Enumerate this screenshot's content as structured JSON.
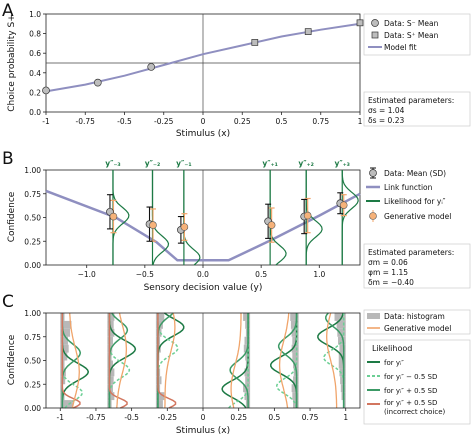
{
  "chart_data": [
    {
      "panel": "A",
      "type": "scatter",
      "xlabel": "Stimulus (x)",
      "ylabel": "Choice probability S+",
      "xlim": [
        -1,
        1
      ],
      "ylim": [
        0,
        1
      ],
      "xticks": [
        "-1",
        "-0.75",
        "-0.5",
        "-0.25",
        "0",
        "0.25",
        "0.5",
        "0.75",
        "1"
      ],
      "yticks": [
        "0.0",
        "0.2",
        "0.4",
        "0.6",
        "0.8",
        "1.0"
      ],
      "grid": false,
      "legend": [
        {
          "label": "Data: S⁻ Mean",
          "marker": "circle"
        },
        {
          "label": "Data: S⁺ Mean",
          "marker": "square"
        },
        {
          "label": "Model fit",
          "marker": "line"
        }
      ],
      "legend_position": "top-right",
      "series": [
        {
          "name": "Data: S⁻ Mean",
          "x": [
            -1,
            -0.67,
            -0.33
          ],
          "y": [
            0.22,
            0.3,
            0.46
          ]
        },
        {
          "name": "Data: S⁺ Mean",
          "x": [
            0.33,
            0.67,
            1.0
          ],
          "y": [
            0.71,
            0.82,
            0.91
          ]
        },
        {
          "name": "Model fit",
          "x": [
            -1,
            -0.75,
            -0.5,
            -0.25,
            0,
            0.25,
            0.5,
            0.75,
            1
          ],
          "y": [
            0.21,
            0.28,
            0.37,
            0.48,
            0.59,
            0.68,
            0.77,
            0.84,
            0.9
          ]
        }
      ],
      "annotation": {
        "title": "Estimated parameters:",
        "lines": [
          "σs = 1.04",
          "δs = 0.23"
        ]
      }
    },
    {
      "panel": "B",
      "type": "scatter",
      "xlabel": "Sensory decision value (y)",
      "ylabel": "Confidence",
      "xlim": [
        -1.35,
        1.35
      ],
      "ylim": [
        0,
        1
      ],
      "xticks": [
        "−1.0",
        "−0.5",
        "0.0",
        "0.5",
        "1.0"
      ],
      "yticks": [
        "0.00",
        "0.25",
        "0.50",
        "0.75",
        "1.00"
      ],
      "top_labels": [
        "y″₋₃",
        "y″₋₂",
        "y″₋₁",
        "y″₊₁",
        "y″₊₂",
        "y″₊₃"
      ],
      "legend": [
        {
          "label": "Data: Mean (SD)",
          "marker": "circle-errorbar"
        },
        {
          "label": "Link function",
          "marker": "line"
        },
        {
          "label": "Likelihood for yᵢ″",
          "marker": "line"
        },
        {
          "label": "Generative model",
          "marker": "circle"
        }
      ],
      "legend_position": "right",
      "series": [
        {
          "name": "Data: Mean (SD)",
          "x": [
            -0.8,
            -0.46,
            -0.19,
            0.56,
            0.87,
            1.18
          ],
          "y": [
            0.56,
            0.43,
            0.37,
            0.46,
            0.51,
            0.65
          ],
          "sd": [
            0.18,
            0.18,
            0.14,
            0.18,
            0.18,
            0.11
          ]
        },
        {
          "name": "Generative model",
          "x": [
            -0.77,
            -0.43,
            -0.16,
            0.59,
            0.9,
            1.21
          ],
          "y": [
            0.51,
            0.42,
            0.4,
            0.42,
            0.52,
            0.63
          ],
          "sd": [
            0.17,
            0.17,
            0.14,
            0.18,
            0.18,
            0.11
          ]
        },
        {
          "name": "Link function",
          "x": [
            -1.35,
            -0.75,
            -0.4,
            -0.22,
            0.22,
            0.6,
            1.0,
            1.35
          ],
          "y": [
            0.78,
            0.5,
            0.24,
            0.05,
            0.05,
            0.27,
            0.52,
            0.75
          ]
        }
      ],
      "annotation": {
        "title": "Estimated parameters:",
        "lines": [
          "σm = 0.06",
          "φm = 1.15",
          "δm = −0.40"
        ]
      }
    },
    {
      "panel": "C",
      "type": "area",
      "xlabel": "Stimulus (x)",
      "ylabel": "Confidence",
      "xlim": [
        -1.1,
        1.1
      ],
      "ylim": [
        0,
        1
      ],
      "xticks": [
        "-1",
        "-0.75",
        "-0.5",
        "-0.25",
        "0",
        "0.25",
        "0.5",
        "0.75",
        "1"
      ],
      "yticks": [
        "0.00",
        "0.25",
        "0.50",
        "0.75",
        "1.00"
      ],
      "legend": [
        {
          "label": "Data: histogram",
          "marker": "patch"
        },
        {
          "label": "Generative model",
          "marker": "line"
        }
      ],
      "legend2_title": "Likelihood",
      "legend2": [
        {
          "label": "for yᵢ″",
          "marker": "line"
        },
        {
          "label": "for yᵢ″ − 0.5 SD",
          "marker": "dashed"
        },
        {
          "label": "for yᵢ″ + 0.5 SD",
          "marker": "line"
        },
        {
          "label": "for yᵢ″ + 0.5 SD (incorrect choice)",
          "marker": "line"
        }
      ],
      "stimuli": [
        -1,
        -0.67,
        -0.33,
        0.33,
        0.67,
        1
      ]
    }
  ],
  "panel_letters": [
    "A",
    "B",
    "C"
  ],
  "colors": {
    "model_fit": "#8f8fc0",
    "green_dark": "#1d7a45",
    "green_mid": "#3c9a66",
    "green_light": "#6ccf95",
    "red": "#d2765f",
    "orange": "#f0a46a",
    "orange_fill": "#f6b27a",
    "gray": "#888888",
    "hist": "#b8b8b8"
  }
}
